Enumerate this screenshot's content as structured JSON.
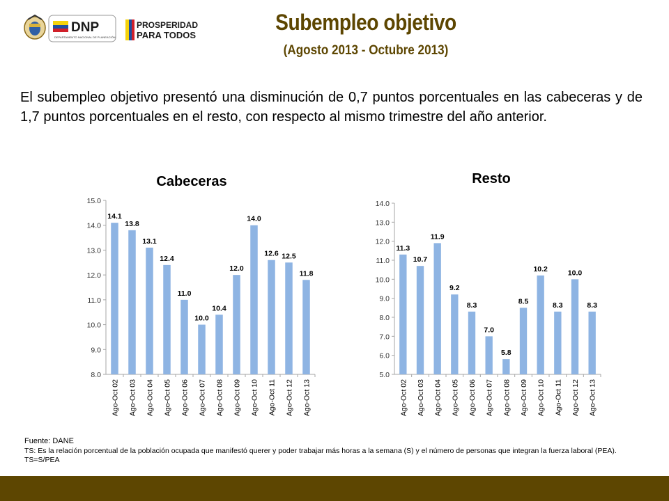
{
  "header": {
    "title": "Subempleo objetivo",
    "subtitle": "(Agosto 2013 - Octubre 2013)",
    "logos": {
      "dnp_text": "DNP",
      "dnp_caption": "DEPARTAMENTO NACIONAL DE PLANEACIÓN",
      "prosperidad_line1": "PROSPERIDAD",
      "prosperidad_line2": "PARA TODOS"
    }
  },
  "summary": "El subempleo objetivo presentó una disminución de 0,7 puntos porcentuales en las cabeceras y de 1,7 puntos porcentuales en el resto, con respecto al mismo trimestre del año anterior.",
  "colors": {
    "brand": "#5d4601",
    "bar": "#8eb4e3"
  },
  "chart_data": [
    {
      "type": "bar",
      "title": "Cabeceras",
      "categories": [
        "Ago-Oct 02",
        "Ago-Oct 03",
        "Ago-Oct 04",
        "Ago-Oct 05",
        "Ago-Oct 06",
        "Ago-Oct 07",
        "Ago-Oct 08",
        "Ago-Oct 09",
        "Ago-Oct 10",
        "Ago-Oct 11",
        "Ago-Oct 12",
        "Ago-Oct 13"
      ],
      "values": [
        14.1,
        13.8,
        13.1,
        12.4,
        11.0,
        10.0,
        10.4,
        12.0,
        14.0,
        12.6,
        12.5,
        11.8
      ],
      "value_labels": [
        "14.1",
        "13.8",
        "13.1",
        "12.4",
        "11.0",
        "10.0",
        "10.4",
        "12.0",
        "14.0",
        "12.6",
        "12.5",
        "11.8"
      ],
      "y_ticks": [
        "8.0",
        "9.0",
        "10.0",
        "11.0",
        "12.0",
        "13.0",
        "14.0",
        "15.0"
      ],
      "ylim": [
        8,
        15
      ],
      "grid": false,
      "legend": "none"
    },
    {
      "type": "bar",
      "title": "Resto",
      "categories": [
        "Ago-Oct 02",
        "Ago-Oct 03",
        "Ago-Oct 04",
        "Ago-Oct 05",
        "Ago-Oct 06",
        "Ago-Oct 07",
        "Ago-Oct 08",
        "Ago-Oct 09",
        "Ago-Oct 10",
        "Ago-Oct 11",
        "Ago-Oct 12",
        "Ago-Oct 13"
      ],
      "values": [
        11.3,
        10.7,
        11.9,
        9.2,
        8.3,
        7.0,
        5.8,
        8.5,
        10.2,
        8.3,
        10.0,
        8.3
      ],
      "value_labels": [
        "11.3",
        "10.7",
        "11.9",
        "9.2",
        "8.3",
        "7.0",
        "5.8",
        "8.5",
        "10.2",
        "8.3",
        "10.0",
        "8.3"
      ],
      "y_ticks": [
        "5.0",
        "6.0",
        "7.0",
        "8.0",
        "9.0",
        "10.0",
        "11.0",
        "12.0",
        "13.0",
        "14.0"
      ],
      "ylim": [
        5,
        14
      ],
      "grid": false,
      "legend": "none"
    }
  ],
  "footnotes": {
    "source": "Fuente: DANE",
    "definition": "TS:  Es la relación porcentual de la población ocupada que manifestó querer y poder trabajar más horas a la semana (S) y el número de personas que integran la fuerza laboral (PEA). TS=S/PEA"
  }
}
